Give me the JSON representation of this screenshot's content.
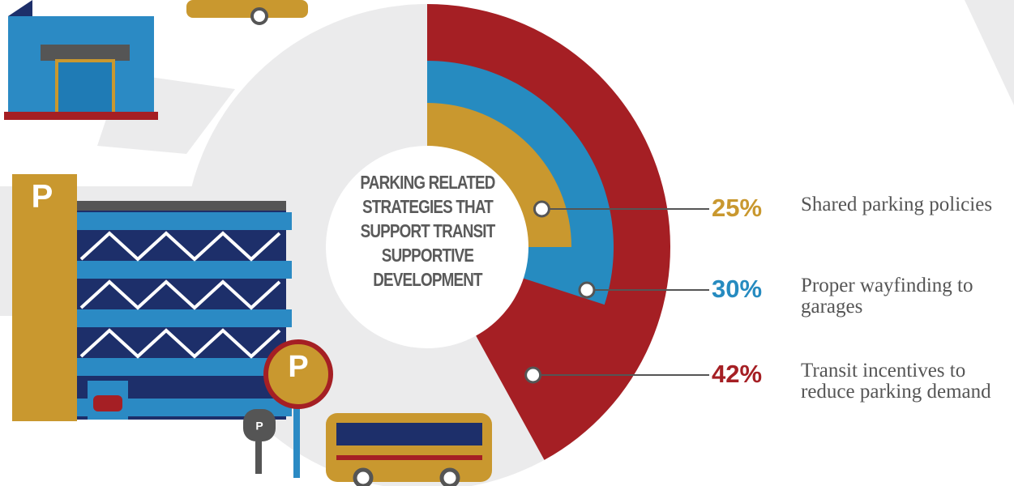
{
  "chart_data": {
    "type": "radial_bar",
    "title": "PARKING RELATED STRATEGIES THAT SUPPORT TRANSIT SUPPORTIVE DEVELOPMENT",
    "categories": [
      "Shared parking policies",
      "Proper wayfinding to garages",
      "Transit incentives to reduce parking demand"
    ],
    "values": [
      25,
      30,
      42
    ],
    "value_labels": [
      "25%",
      "30%",
      "42%"
    ],
    "colors": [
      "#c9982f",
      "#268bc0",
      "#a51f24"
    ],
    "annotations": [
      "P",
      "P",
      "P"
    ]
  }
}
